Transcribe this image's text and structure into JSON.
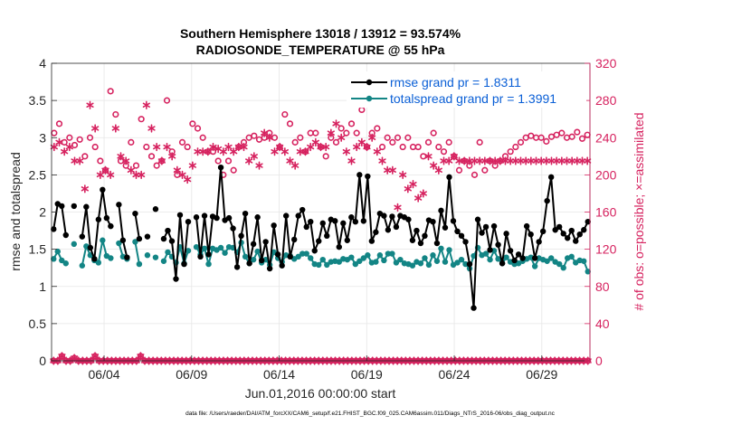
{
  "chart_data": {
    "type": "line",
    "title": "Southern Hemisphere 13018 / 13912 = 93.574%",
    "subtitle": "RADIOSONDE_TEMPERATURE @ 55 hPa",
    "xlabel": "Jun.01,2016 00:00:00 start",
    "ylabel_left": "rmse and totalspread",
    "ylabel_right": "# of obs: o=possible; ×=assimilated",
    "footer": "data file: /Users/raeder/DAI/ATM_forcXX/CAM6_setup/f.e21.FHIST_BGC.f09_025.CAM6assim.011/Diags_NTrS_2016-06/obs_diag_output.nc",
    "xlim": [
      1,
      31.75
    ],
    "ylim_left": [
      0,
      4
    ],
    "ylim_right": [
      0,
      320
    ],
    "x_tick_values": [
      4,
      9,
      14,
      19,
      24,
      29
    ],
    "x_tick_labels": [
      "06/04",
      "06/09",
      "06/14",
      "06/19",
      "06/24",
      "06/29"
    ],
    "y_left_ticks": [
      "0",
      "0.5",
      "1",
      "1.5",
      "2",
      "2.5",
      "3",
      "3.5",
      "4"
    ],
    "y_right_ticks": [
      "0",
      "40",
      "80",
      "120",
      "160",
      "200",
      "240",
      "280",
      "320"
    ],
    "legend": [
      {
        "label": "rmse grand pr = 1.8311",
        "color": "#000000"
      },
      {
        "label": "totalspread grand pr = 1.3991",
        "color": "#138585"
      }
    ],
    "colors": {
      "rmse": "#000000",
      "spread": "#138585",
      "obs": "#d6225f",
      "legend_text": "#0a5fd6"
    },
    "series": [
      {
        "name": "rmse",
        "axis": "left",
        "values": [
          1.77,
          2.11,
          2.08,
          1.69,
          null,
          2.08,
          null,
          1.67,
          2.07,
          1.52,
          1.37,
          1.9,
          2.3,
          1.92,
          1.81,
          null,
          2.1,
          1.62,
          1.39,
          null,
          1.98,
          1.64,
          null,
          1.67,
          null,
          2.04,
          null,
          1.64,
          1.75,
          1.61,
          1.1,
          1.96,
          1.3,
          1.87,
          null,
          1.93,
          1.4,
          1.95,
          1.43,
          1.94,
          1.92,
          2.6,
          1.89,
          1.92,
          1.78,
          1.26,
          1.68,
          1.98,
          1.31,
          1.57,
          1.93,
          1.35,
          1.6,
          1.24,
          1.82,
          1.43,
          1.28,
          1.95,
          1.4,
          1.63,
          1.95,
          2.03,
          1.8,
          1.87,
          1.48,
          1.61,
          1.85,
          1.68,
          1.9,
          1.88,
          1.53,
          1.85,
          1.62,
          1.93,
          1.87,
          2.5,
          1.88,
          2.48,
          1.61,
          1.73,
          1.98,
          1.95,
          1.76,
          1.94,
          1.8,
          1.95,
          1.93,
          1.9,
          1.62,
          1.75,
          1.58,
          1.68,
          1.89,
          1.87,
          1.58,
          2.02,
          1.79,
          2.47,
          1.88,
          1.74,
          1.68,
          1.6,
          1.3,
          0.71,
          1.9,
          1.72,
          1.8,
          1.49,
          1.81,
          1.56,
          1.31,
          1.71,
          1.48,
          1.35,
          1.43,
          1.38,
          1.81,
          1.7,
          1.38,
          1.6,
          1.74,
          2.15,
          2.47,
          1.76,
          1.8,
          1.71,
          1.65,
          1.75,
          1.61,
          1.7,
          1.76,
          1.87
        ]
      },
      {
        "name": "totalspread",
        "axis": "left",
        "values": [
          1.37,
          1.47,
          1.35,
          1.31,
          null,
          1.57,
          null,
          1.28,
          1.54,
          1.42,
          1.35,
          1.32,
          1.62,
          1.41,
          1.38,
          null,
          1.58,
          1.4,
          1.37,
          null,
          1.6,
          1.3,
          null,
          1.42,
          null,
          1.39,
          null,
          1.34,
          1.46,
          1.4,
          1.32,
          1.53,
          1.31,
          1.48,
          null,
          1.53,
          1.43,
          1.51,
          1.3,
          1.51,
          1.49,
          1.52,
          1.45,
          1.53,
          1.52,
          1.46,
          1.59,
          1.4,
          1.31,
          1.36,
          1.47,
          1.32,
          1.36,
          1.29,
          1.46,
          1.38,
          1.33,
          1.42,
          1.41,
          1.37,
          1.4,
          1.44,
          1.44,
          1.38,
          1.3,
          1.29,
          1.36,
          1.29,
          1.33,
          1.34,
          1.33,
          1.37,
          1.36,
          1.39,
          1.3,
          1.34,
          1.38,
          1.42,
          1.32,
          1.33,
          1.42,
          1.35,
          1.44,
          1.44,
          1.32,
          1.36,
          1.31,
          1.3,
          1.28,
          1.33,
          1.31,
          1.38,
          1.29,
          1.42,
          1.34,
          1.51,
          1.33,
          1.49,
          1.29,
          1.32,
          1.36,
          1.3,
          1.24,
          1.41,
          1.52,
          1.42,
          1.44,
          1.36,
          1.48,
          1.37,
          1.31,
          1.39,
          1.33,
          1.3,
          1.31,
          1.34,
          1.37,
          1.39,
          1.27,
          1.38,
          1.36,
          1.34,
          1.38,
          1.33,
          1.3,
          1.25,
          1.38,
          1.4,
          1.32,
          1.35,
          1.34,
          1.2
        ]
      },
      {
        "name": "obs possible (o)",
        "axis": "right",
        "marker": "circle",
        "values": [
          245,
          255,
          235,
          240,
          232,
          238,
          220,
          240,
          230,
          215,
          205,
          290,
          265,
          215,
          210,
          235,
          210,
          260,
          230,
          220,
          210,
          215,
          280,
          225,
          200,
          235,
          230,
          255,
          250,
          240,
          225,
          225,
          215,
          200,
          215,
          205,
          230,
          235,
          240,
          242,
          238,
          240,
          245,
          240,
          230,
          265,
          255,
          235,
          240,
          225,
          245,
          245,
          230,
          220,
          240,
          235,
          250,
          245,
          255,
          245,
          270,
          230,
          245,
          250,
          230,
          240,
          235,
          240,
          230,
          240,
          230,
          230,
          220,
          235,
          245,
          230,
          225,
          235,
          220,
          205,
          215,
          210,
          200,
          235,
          205,
          215,
          210,
          215,
          220,
          225,
          230,
          235,
          240,
          242,
          240,
          240,
          236,
          241,
          243,
          245,
          240,
          241,
          246,
          239,
          243
        ]
      },
      {
        "name": "obs assimilated (×)",
        "axis": "right",
        "marker": "star",
        "values": [
          230,
          235,
          225,
          230,
          215,
          215,
          185,
          275,
          250,
          200,
          205,
          200,
          250,
          220,
          215,
          205,
          200,
          200,
          275,
          250,
          230,
          215,
          230,
          220,
          205,
          200,
          195,
          210,
          225,
          225,
          225,
          230,
          228,
          225,
          230,
          225,
          230,
          230,
          215,
          220,
          210,
          245,
          240,
          225,
          230,
          225,
          215,
          210,
          225,
          225,
          230,
          235,
          230,
          230,
          245,
          255,
          240,
          225,
          215,
          230,
          235,
          230,
          240,
          225,
          215,
          205,
          205,
          165,
          200,
          185,
          190,
          175,
          180,
          220,
          210,
          205,
          215,
          215,
          220,
          215,
          215,
          215,
          215,
          215,
          215,
          215,
          215,
          215,
          215,
          215,
          215,
          215,
          215,
          215,
          215,
          215,
          215,
          215,
          215,
          215,
          215,
          215,
          215,
          215,
          215
        ]
      },
      {
        "name": "obs low (o)",
        "axis": "right",
        "marker": "circle",
        "values": [
          0,
          0,
          5,
          0,
          0,
          3,
          0,
          0,
          0,
          0,
          5,
          0,
          0,
          0,
          0,
          0,
          0,
          0,
          0,
          0,
          0,
          5,
          0,
          0,
          0,
          0,
          0,
          0,
          0,
          0,
          0,
          0,
          0,
          0,
          0,
          0,
          0,
          0,
          0,
          0,
          0,
          0,
          0,
          0,
          0,
          0,
          0,
          0,
          0,
          0,
          0,
          0,
          0,
          0,
          0,
          0,
          0,
          0,
          0,
          0,
          0,
          0,
          0,
          0,
          0,
          0,
          0,
          0,
          0,
          0,
          0,
          0,
          0,
          0,
          0,
          0,
          0,
          0,
          0,
          0,
          0,
          0,
          0,
          0,
          0,
          0,
          0,
          0,
          0,
          0,
          0,
          0,
          0,
          0,
          0,
          0,
          0,
          0,
          0,
          0,
          0,
          0,
          0,
          0,
          0,
          0,
          0,
          0,
          0,
          0,
          0,
          0,
          0,
          0,
          0,
          0,
          0,
          0,
          0,
          0,
          0,
          0,
          0,
          0,
          0,
          0,
          0,
          0,
          0,
          0
        ]
      },
      {
        "name": "obs low (×)",
        "axis": "right",
        "marker": "star",
        "values": [
          0,
          0,
          5,
          0,
          0,
          3,
          0,
          0,
          0,
          0,
          5,
          0,
          0,
          0,
          0,
          0,
          0,
          0,
          0,
          0,
          0,
          5,
          0,
          0,
          0,
          0,
          0,
          0,
          0,
          0,
          0,
          0,
          0,
          0,
          0,
          0,
          0,
          0,
          0,
          0,
          0,
          0,
          0,
          0,
          0,
          0,
          0,
          0,
          0,
          0,
          0,
          0,
          0,
          0,
          0,
          0,
          0,
          0,
          0,
          0,
          0,
          0,
          0,
          0,
          0,
          0,
          0,
          0,
          0,
          0,
          0,
          0,
          0,
          0,
          0,
          0,
          0,
          0,
          0,
          0,
          0,
          0,
          0,
          0,
          0,
          0,
          0,
          0,
          0,
          0,
          0,
          0,
          0,
          0,
          0,
          0,
          0,
          0,
          0,
          0,
          0,
          0,
          0,
          0,
          0,
          0,
          0,
          0,
          0,
          0,
          0,
          0,
          0,
          0,
          0,
          0,
          0,
          0,
          0,
          0,
          0,
          0,
          0,
          0,
          0,
          0,
          0,
          0,
          0,
          0
        ]
      }
    ]
  }
}
